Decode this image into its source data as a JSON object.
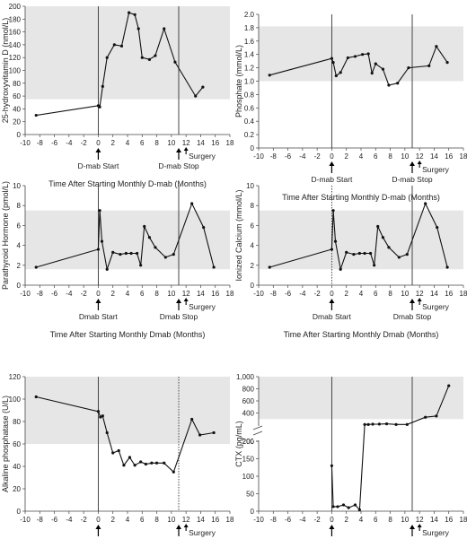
{
  "chart_data": [
    {
      "type": "line",
      "ylabel": "25-hydroxyvitamin D (nmol/L)",
      "xlabel": "Time After Starting Monthly D-mab (Months)",
      "xlim": [
        -10,
        18
      ],
      "xticks": [
        -10,
        -8,
        -6,
        -4,
        -2,
        0,
        2,
        4,
        6,
        8,
        10,
        12,
        14,
        16,
        18
      ],
      "ylim": [
        0,
        200
      ],
      "yticks": [
        0,
        20,
        40,
        60,
        80,
        100,
        120,
        140,
        160,
        180,
        200
      ],
      "reference_range": [
        55,
        200
      ],
      "grid": false,
      "x": [
        -8.5,
        0,
        0.2,
        0.6,
        1.2,
        2.2,
        3.2,
        4.2,
        5.0,
        5.5,
        6.0,
        7.0,
        7.8,
        9.0,
        10.5,
        13.3,
        14.3
      ],
      "y": [
        30,
        45,
        43,
        75,
        120,
        140,
        138,
        190,
        187,
        165,
        120,
        117,
        123,
        165,
        113,
        60,
        74
      ],
      "vlines": [
        {
          "x": 0,
          "style": "solid",
          "label": "D-mab Start"
        },
        {
          "x": 11,
          "style": "solid",
          "label": "D-mab Stop"
        }
      ],
      "annotations": [
        {
          "x": 12,
          "label": "Surgery"
        }
      ]
    },
    {
      "type": "line",
      "ylabel": "Phosphate (mmol/L)",
      "xlabel": "Time After Starting Monthly D-mab (Months)",
      "xlim": [
        -10,
        18
      ],
      "xticks": [
        -10,
        -8,
        -6,
        -4,
        -2,
        0,
        2,
        4,
        6,
        8,
        10,
        12,
        14,
        16,
        18
      ],
      "ylim": [
        0,
        2.0
      ],
      "yticks": [
        "0",
        "0.2",
        "0.4",
        "0.6",
        "0.8",
        "1.0",
        "1.2",
        "1.4",
        "1.6",
        "1.8",
        "2.0"
      ],
      "reference_range": [
        1.0,
        1.82
      ],
      "grid": false,
      "x": [
        -8.5,
        0,
        0.2,
        0.6,
        1.2,
        2.2,
        3.2,
        4.2,
        5.0,
        5.5,
        6.0,
        7.0,
        7.8,
        9.0,
        10.5,
        13.3,
        14.3,
        15.8
      ],
      "y": [
        1.09,
        1.34,
        1.28,
        1.08,
        1.13,
        1.35,
        1.37,
        1.4,
        1.41,
        1.12,
        1.26,
        1.18,
        0.94,
        0.97,
        1.2,
        1.23,
        1.52,
        1.28
      ],
      "vlines": [
        {
          "x": 0,
          "style": "solid",
          "label": "D-mab Start"
        },
        {
          "x": 11,
          "style": "solid",
          "label": "D-mab Stop"
        }
      ],
      "annotations": [
        {
          "x": 12,
          "label": "Surgery"
        }
      ]
    },
    {
      "type": "line",
      "ylabel": "Parathyroid Hormone (pmol/L)",
      "xlabel": "Time After Starting Monthly Dmab (Months)",
      "xlim": [
        -10,
        18
      ],
      "xticks": [
        -10,
        -8,
        -6,
        -4,
        -2,
        0,
        2,
        4,
        6,
        8,
        10,
        12,
        14,
        16,
        18
      ],
      "ylim": [
        0,
        10
      ],
      "yticks": [
        0,
        2,
        4,
        6,
        8,
        10
      ],
      "reference_range": [
        1.6,
        7.5
      ],
      "grid": false,
      "x": [
        -8.5,
        0,
        0.2,
        0.5,
        1.2,
        2.0,
        3.0,
        3.8,
        4.5,
        5.3,
        5.8,
        6.3,
        7.0,
        7.8,
        9.2,
        10.3,
        12.8,
        14.4,
        15.8
      ],
      "y": [
        1.8,
        3.6,
        7.5,
        4.4,
        1.6,
        3.3,
        3.1,
        3.2,
        3.2,
        3.2,
        2.0,
        5.9,
        4.8,
        3.8,
        2.8,
        3.1,
        8.2,
        5.8,
        1.8
      ],
      "vlines": [
        {
          "x": 0,
          "style": "solid",
          "label": "Dmab Start"
        },
        {
          "x": 11,
          "style": "solid",
          "label": "Dmab Stop"
        }
      ],
      "annotations": [
        {
          "x": 12,
          "label": "Surgery"
        }
      ]
    },
    {
      "type": "line",
      "ylabel": "Ionized Calcium (mmol/L)",
      "xlabel": "Time After Starting Monthly Dmab (Months)",
      "xlim": [
        -10,
        18
      ],
      "xticks": [
        -10,
        -8,
        -6,
        -4,
        -2,
        0,
        2,
        4,
        6,
        8,
        10,
        12,
        14,
        16,
        18
      ],
      "ylim": [
        0,
        10
      ],
      "yticks": [
        0,
        2,
        4,
        6,
        8,
        10
      ],
      "reference_range": [
        1.6,
        7.5
      ],
      "grid": false,
      "x": [
        -8.5,
        0,
        0.2,
        0.5,
        1.2,
        2.0,
        3.0,
        3.8,
        4.5,
        5.3,
        5.8,
        6.3,
        7.0,
        7.8,
        9.2,
        10.3,
        12.8,
        14.4,
        15.8
      ],
      "y": [
        1.8,
        3.6,
        7.5,
        4.4,
        1.6,
        3.3,
        3.1,
        3.2,
        3.2,
        3.2,
        2.0,
        5.9,
        4.8,
        3.8,
        2.8,
        3.1,
        8.2,
        5.8,
        1.8
      ],
      "vlines": [
        {
          "x": 0,
          "style": "dotted",
          "label": "Dmab Start"
        },
        {
          "x": 11,
          "style": "solid",
          "label": "Dmab Stop"
        }
      ],
      "annotations": [
        {
          "x": 12,
          "label": "Surgery"
        }
      ]
    },
    {
      "type": "line",
      "ylabel": "Alkaline phosphatase (U/L)",
      "xlabel": "Time After Starting Monthly Dmab (Months)",
      "xlim": [
        -10,
        18
      ],
      "xticks": [
        -10,
        -8,
        -6,
        -4,
        -2,
        0,
        2,
        4,
        6,
        8,
        10,
        12,
        14,
        16,
        18
      ],
      "ylim": [
        0,
        120
      ],
      "yticks": [
        0,
        20,
        40,
        60,
        80,
        100,
        120
      ],
      "reference_range": [
        60,
        120
      ],
      "grid": false,
      "x": [
        -8.5,
        0,
        0.3,
        0.6,
        1.2,
        2.0,
        2.8,
        3.5,
        4.3,
        5.0,
        5.8,
        6.5,
        7.3,
        8.0,
        9.0,
        10.3,
        12.8,
        13.9,
        15.8
      ],
      "y": [
        102,
        89,
        84,
        85,
        70,
        52,
        54,
        41,
        48,
        41,
        44,
        42,
        43,
        43,
        43,
        35,
        82,
        68,
        70
      ],
      "vlines": [
        {
          "x": 0,
          "style": "solid",
          "label": "Dmab Start"
        },
        {
          "x": 11,
          "style": "dotted",
          "label": "Dmab Stop"
        }
      ],
      "annotations": [
        {
          "x": 12,
          "label": "Surgery"
        }
      ]
    },
    {
      "type": "line",
      "ylabel": "CTX (pg/mL)",
      "xlabel": "Time After Starting Monthly Dmab (Months)",
      "xlim": [
        -10,
        18
      ],
      "xticks": [
        -10,
        -8,
        -6,
        -4,
        -2,
        0,
        2,
        4,
        6,
        8,
        10,
        12,
        14,
        16,
        18
      ],
      "ylim": [
        0,
        1000
      ],
      "yticks_lower": [
        0,
        50,
        100,
        150,
        200
      ],
      "yticks_upper": [
        "200",
        "400",
        "600",
        "800",
        "1,000"
      ],
      "axis_break": true,
      "reference_range": [
        300,
        1000
      ],
      "grid": false,
      "x": [
        0,
        0.2,
        0.8,
        1.6,
        2.3,
        3.2,
        3.8,
        4.5,
        5.0,
        5.6,
        6.5,
        7.5,
        8.8,
        10.3,
        12.8,
        14.3,
        16.0
      ],
      "y": [
        130,
        13,
        13,
        18,
        10,
        18,
        4,
        210,
        210,
        215,
        217,
        220,
        210,
        210,
        330,
        350,
        850
      ],
      "vlines": [
        {
          "x": 0,
          "style": "solid",
          "label": "Dmab Start"
        },
        {
          "x": 11,
          "style": "solid",
          "label": "Dmab Stop"
        }
      ],
      "annotations": [
        {
          "x": 12,
          "label": "Surgery"
        }
      ]
    }
  ]
}
